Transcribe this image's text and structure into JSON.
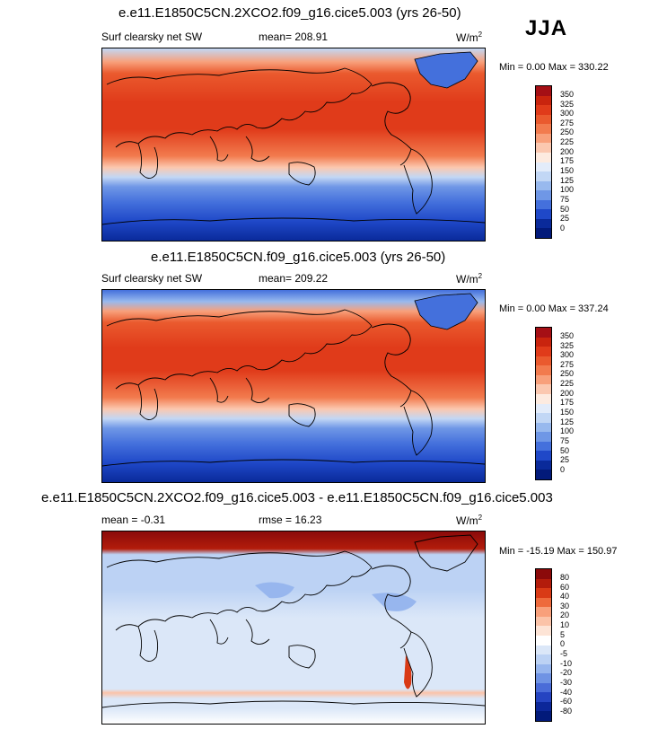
{
  "season": "JJA",
  "panels": [
    {
      "title": "e.e11.E1850C5CN.2XCO2.f09_g16.cice5.003 (yrs 26-50)",
      "variable": "Surf clearsky net SW",
      "mean": "mean= 208.91",
      "units_base": "W/m",
      "units_exp": "2",
      "minmax": "Min =   0.00 Max = 330.22",
      "colorbar_labels": [
        "350",
        "325",
        "300",
        "275",
        "250",
        "225",
        "200",
        "175",
        "150",
        "125",
        "100",
        "75",
        "50",
        "25",
        "0"
      ]
    },
    {
      "title": "e.e11.E1850C5CN.f09_g16.cice5.003 (yrs 26-50)",
      "variable": "Surf clearsky net SW",
      "mean": "mean= 209.22",
      "units_base": "W/m",
      "units_exp": "2",
      "minmax": "Min =   0.00 Max = 337.24",
      "colorbar_labels": [
        "350",
        "325",
        "300",
        "275",
        "250",
        "225",
        "200",
        "175",
        "150",
        "125",
        "100",
        "75",
        "50",
        "25",
        "0"
      ]
    },
    {
      "title": "e.e11.E1850C5CN.2XCO2.f09_g16.cice5.003 - e.e11.E1850C5CN.f09_g16.cice5.003",
      "mean": "mean =  -0.31",
      "rmse": "rmse =  16.23",
      "units_base": "W/m",
      "units_exp": "2",
      "minmax": "Min = -15.19 Max = 150.97",
      "colorbar_labels": [
        "80",
        "60",
        "40",
        "30",
        "20",
        "10",
        "5",
        "0",
        "-5",
        "-10",
        "-20",
        "-30",
        "-40",
        "-60",
        "-80"
      ]
    }
  ],
  "colors": {
    "abs_scale": [
      "#a50f15",
      "#c9240e",
      "#e03b1a",
      "#ea5a2e",
      "#f27b4e",
      "#f8a07b",
      "#fbc8b0",
      "#fdebe0",
      "#e3ecfa",
      "#c2d7f5",
      "#98b9ee",
      "#6f97e6",
      "#4470dc",
      "#1f48c8",
      "#0a2a9a",
      "#021a7a"
    ],
    "diff_scale": [
      "#8b0a0a",
      "#b31c0b",
      "#d93a16",
      "#ee6a3c",
      "#f8a07b",
      "#fbc3a8",
      "#fde4d6",
      "#ffffff",
      "#dbe7f8",
      "#bcd2f4",
      "#97b6ee",
      "#6f93e4",
      "#4a6cd8",
      "#2544c1",
      "#0c2799",
      "#021a7a"
    ]
  }
}
